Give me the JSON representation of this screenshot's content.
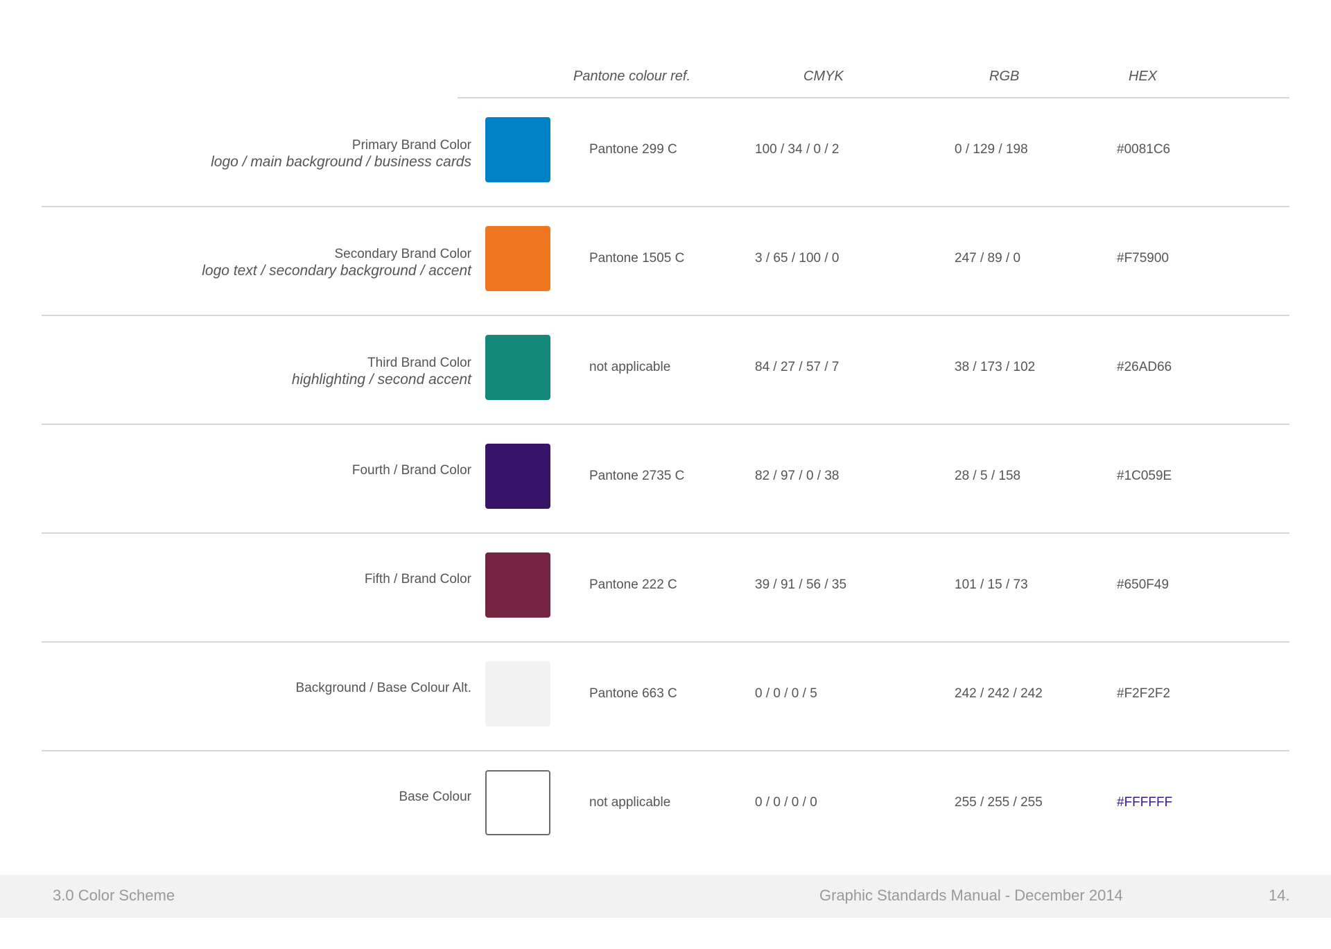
{
  "columns": {
    "pantone": "Pantone colour ref.",
    "cmyk": "CMYK",
    "rgb": "RGB",
    "hex": "HEX"
  },
  "rows": [
    {
      "title": "Primary Brand Color",
      "description": "logo / main background / business cards",
      "swatch_color": "#0081C6",
      "pantone": "Pantone 299 C",
      "cmyk": "100 / 34 / 0 / 2",
      "rgb": "0 / 129 / 198",
      "hex": "#0081C6"
    },
    {
      "title": "Secondary Brand Color",
      "description": "logo text / secondary background / accent",
      "swatch_color": "#F07622",
      "pantone": "Pantone 1505 C",
      "cmyk": "3 / 65 / 100 / 0",
      "rgb": "247 / 89 / 0",
      "hex": "#F75900"
    },
    {
      "title": "Third Brand Color",
      "description": "highlighting / second accent",
      "swatch_color": "#14897B",
      "pantone": "not applicable",
      "cmyk": "84 / 27 / 57 / 7",
      "rgb": "38 / 173 / 102",
      "hex": "#26AD66"
    },
    {
      "title": "Fourth / Brand Color",
      "description": "",
      "swatch_color": "#381569",
      "pantone": "Pantone 2735 C",
      "cmyk": "82 / 97 / 0 / 38",
      "rgb": "28 / 5 / 158",
      "hex": "#1C059E"
    },
    {
      "title": "Fifth / Brand Color",
      "description": "",
      "swatch_color": "#742340",
      "pantone": "Pantone 222 C",
      "cmyk": "39 / 91 / 56 / 35",
      "rgb": "101 / 15 / 73",
      "hex": "#650F49"
    },
    {
      "title": "Background / Base Colour Alt.",
      "description": "",
      "swatch_color": "#F2F2F3",
      "pantone": "Pantone 663 C",
      "cmyk": "0 / 0 / 0 / 5",
      "rgb": "242 / 242 / 242",
      "hex": "#F2F2F2"
    },
    {
      "title": "Base Colour",
      "description": "",
      "swatch_color": "#FFFFFF",
      "pantone": "not applicable",
      "cmyk": "0 / 0 / 0 / 0",
      "rgb": "255 / 255 / 255",
      "hex": "#FFFFFF"
    }
  ],
  "footer": {
    "section": "3.0  Color Scheme",
    "manual": "Graphic Standards Manual - December 2014",
    "page": "14."
  },
  "colors": {
    "text": "#555555",
    "rule": "#D7D7D7",
    "footer_bg": "#F2F2F3",
    "footer_text": "#999999",
    "hex_highlight": "#3B1A86"
  }
}
